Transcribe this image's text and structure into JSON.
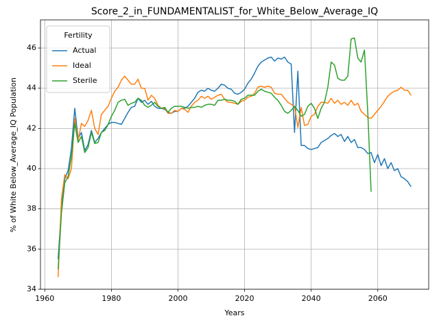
{
  "chart_data": {
    "type": "line",
    "title": "Score_2_in_FUNDAMENTALIST_for_White_Below_Average_IQ",
    "xlabel": "Years",
    "ylabel": "% of White Below_Average_IQ Population",
    "legend_title": "Fertility",
    "legend_loc": "upper left",
    "grid": true,
    "xlim": [
      1958.7,
      2075.3
    ],
    "ylim": [
      34.0,
      47.4
    ],
    "xticks": [
      1960,
      1980,
      2000,
      2020,
      2040,
      2060
    ],
    "yticks": [
      34,
      36,
      38,
      40,
      42,
      44,
      46
    ],
    "x": [
      1964,
      1965,
      1966,
      1967,
      1968,
      1969,
      1970,
      1971,
      1972,
      1973,
      1974,
      1975,
      1976,
      1977,
      1978,
      1979,
      1980,
      1981,
      1982,
      1983,
      1984,
      1985,
      1986,
      1987,
      1988,
      1989,
      1990,
      1991,
      1992,
      1993,
      1994,
      1995,
      1996,
      1997,
      1998,
      1999,
      2000,
      2001,
      2002,
      2003,
      2004,
      2005,
      2006,
      2007,
      2008,
      2009,
      2010,
      2011,
      2012,
      2013,
      2014,
      2015,
      2016,
      2017,
      2018,
      2019,
      2020,
      2021,
      2022,
      2023,
      2024,
      2025,
      2026,
      2027,
      2028,
      2029,
      2030,
      2031,
      2032,
      2033,
      2034,
      2035,
      2036,
      2037,
      2038,
      2039,
      2040,
      2041,
      2042,
      2043,
      2044,
      2045,
      2046,
      2047,
      2048,
      2049,
      2050,
      2051,
      2052,
      2053,
      2054,
      2055,
      2056,
      2057,
      2058,
      2059,
      2060,
      2061,
      2062,
      2063,
      2064,
      2065,
      2066,
      2067,
      2068,
      2069,
      2070
    ],
    "series": [
      {
        "name": "Actual",
        "color": "#1f77b4",
        "values": [
          35.5,
          38.0,
          39.5,
          39.9,
          41.0,
          43.0,
          41.5,
          41.8,
          40.9,
          41.2,
          41.9,
          41.3,
          41.5,
          41.8,
          42.0,
          42.2,
          42.3,
          42.3,
          42.25,
          42.2,
          42.5,
          42.8,
          43.05,
          43.1,
          43.5,
          43.3,
          43.4,
          43.2,
          43.35,
          43.1,
          43.0,
          43.0,
          42.95,
          42.8,
          42.75,
          42.85,
          42.85,
          43.0,
          43.0,
          43.1,
          43.3,
          43.5,
          43.8,
          43.9,
          43.85,
          44.0,
          43.9,
          43.85,
          44.0,
          44.2,
          44.15,
          44.0,
          43.95,
          43.75,
          43.7,
          43.8,
          43.95,
          44.25,
          44.45,
          44.75,
          45.1,
          45.3,
          45.4,
          45.5,
          45.55,
          45.35,
          45.5,
          45.45,
          45.55,
          45.3,
          45.2,
          41.8,
          44.85,
          41.15,
          41.15,
          41.0,
          40.95,
          41.0,
          41.05,
          41.3,
          41.4,
          41.5,
          41.65,
          41.75,
          41.6,
          41.7,
          41.35,
          41.6,
          41.3,
          41.45,
          41.05,
          41.05,
          40.95,
          40.75,
          40.8,
          40.3,
          40.7,
          40.15,
          40.5,
          40.0,
          40.3,
          39.9,
          40.0,
          39.6,
          39.5,
          39.35,
          39.1
        ]
      },
      {
        "name": "Ideal",
        "color": "#ff7f0e",
        "values": [
          34.6,
          38.5,
          39.7,
          39.5,
          40.0,
          42.5,
          41.4,
          42.25,
          42.1,
          42.4,
          42.9,
          42.0,
          41.7,
          42.7,
          42.9,
          43.1,
          43.5,
          43.85,
          44.05,
          44.4,
          44.6,
          44.4,
          44.2,
          44.2,
          44.45,
          44.0,
          44.0,
          43.4,
          43.65,
          43.5,
          43.15,
          43.0,
          43.0,
          42.75,
          42.75,
          42.9,
          42.85,
          43.0,
          42.95,
          42.8,
          43.1,
          43.3,
          43.4,
          43.6,
          43.5,
          43.6,
          43.45,
          43.55,
          43.65,
          43.7,
          43.45,
          43.3,
          43.3,
          43.25,
          43.2,
          43.35,
          43.4,
          43.55,
          43.6,
          43.75,
          44.05,
          44.1,
          44.05,
          44.1,
          44.05,
          43.75,
          43.7,
          43.7,
          43.5,
          43.3,
          43.2,
          43.1,
          42.05,
          43.05,
          42.15,
          42.2,
          42.6,
          42.7,
          43.1,
          43.3,
          43.3,
          43.25,
          43.5,
          43.25,
          43.4,
          43.2,
          43.3,
          43.15,
          43.4,
          43.15,
          43.25,
          42.85,
          42.7,
          42.55,
          42.5,
          42.7,
          42.9,
          43.1,
          43.35,
          43.6,
          43.75,
          43.85,
          43.9,
          44.05,
          43.9,
          43.9,
          43.65
        ]
      },
      {
        "name": "Sterile",
        "color": "#2ca02c",
        "values": [
          35.0,
          37.8,
          39.3,
          39.6,
          40.6,
          42.25,
          41.3,
          41.6,
          40.8,
          41.05,
          41.8,
          41.25,
          41.3,
          41.8,
          41.9,
          42.2,
          42.6,
          42.9,
          43.3,
          43.4,
          43.45,
          43.15,
          43.25,
          43.3,
          43.5,
          43.4,
          43.15,
          43.05,
          43.15,
          43.3,
          43.1,
          43.0,
          43.05,
          42.8,
          43.0,
          43.1,
          43.1,
          43.1,
          43.05,
          43.0,
          43.05,
          43.05,
          43.1,
          43.05,
          43.15,
          43.2,
          43.2,
          43.15,
          43.4,
          43.4,
          43.45,
          43.4,
          43.4,
          43.35,
          43.2,
          43.45,
          43.5,
          43.65,
          43.65,
          43.65,
          43.85,
          43.95,
          43.85,
          43.8,
          43.75,
          43.55,
          43.4,
          43.15,
          42.85,
          42.75,
          42.9,
          43.1,
          42.9,
          42.6,
          42.7,
          43.1,
          43.25,
          43.0,
          42.5,
          43.0,
          43.3,
          44.05,
          45.3,
          45.15,
          44.5,
          44.4,
          44.4,
          44.6,
          46.45,
          46.5,
          45.5,
          45.3,
          45.9,
          42.8,
          38.85,
          null,
          null,
          null,
          null,
          null,
          null,
          null,
          null,
          null,
          null,
          null,
          null
        ]
      }
    ]
  }
}
